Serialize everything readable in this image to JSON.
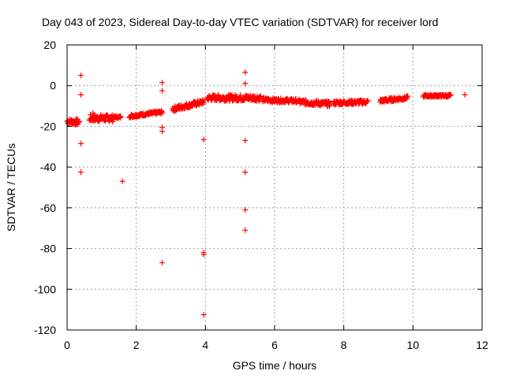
{
  "chart_data": {
    "type": "scatter",
    "title": "Day 043 of 2023, Sidereal Day-to-day VTEC variation (SDTVAR) for receiver lord",
    "xlabel": "GPS time / hours",
    "ylabel": "SDTVAR / TECUs",
    "xlim": [
      0,
      12
    ],
    "ylim": [
      -120,
      20
    ],
    "xticks": [
      0,
      2,
      4,
      6,
      8,
      10,
      12
    ],
    "yticks": [
      -120,
      -100,
      -80,
      -60,
      -40,
      -20,
      0,
      20
    ],
    "xtick_labels": [
      "0",
      "2",
      "4",
      "6",
      "8",
      "10",
      "12"
    ],
    "ytick_labels": [
      "-120",
      "-100",
      "-80",
      "-60",
      "-40",
      "-20",
      "0",
      "20"
    ],
    "grid": true,
    "marker": "plus",
    "color": "#ff0000",
    "series": [
      {
        "name": "SDTVAR",
        "segments": [
          {
            "x_start": 0.0,
            "x_end": 0.35,
            "y_start": -17.5,
            "y_end": -18.0,
            "spread": 3.0
          },
          {
            "x_start": 0.65,
            "x_end": 1.35,
            "y_start": -16.0,
            "y_end": -16.0,
            "spread": 3.5
          },
          {
            "x_start": 1.35,
            "x_end": 1.55,
            "y_start": -15.5,
            "y_end": -15.5,
            "spread": 1.2
          },
          {
            "x_start": 1.8,
            "x_end": 2.75,
            "y_start": -15.0,
            "y_end": -13.0,
            "spread": 1.5
          },
          {
            "x_start": 3.05,
            "x_end": 3.95,
            "y_start": -11.5,
            "y_end": -8.0,
            "spread": 2.5
          },
          {
            "x_start": 4.05,
            "x_end": 5.6,
            "y_start": -6.0,
            "y_end": -6.0,
            "spread": 3.0
          },
          {
            "x_start": 5.65,
            "x_end": 6.65,
            "y_start": -7.0,
            "y_end": -7.5,
            "spread": 2.0
          },
          {
            "x_start": 6.7,
            "x_end": 7.6,
            "y_start": -8.0,
            "y_end": -9.0,
            "spread": 2.5
          },
          {
            "x_start": 7.7,
            "x_end": 8.7,
            "y_start": -8.5,
            "y_end": -8.0,
            "spread": 2.0
          },
          {
            "x_start": 9.05,
            "x_end": 9.85,
            "y_start": -7.5,
            "y_end": -6.0,
            "spread": 1.8
          },
          {
            "x_start": 10.3,
            "x_end": 11.1,
            "y_start": -5.0,
            "y_end": -5.0,
            "spread": 1.2
          }
        ],
        "points": [
          {
            "x": 0.4,
            "y": 5.0
          },
          {
            "x": 0.4,
            "y": -4.5
          },
          {
            "x": 0.4,
            "y": -28.5
          },
          {
            "x": 0.4,
            "y": -42.5
          },
          {
            "x": 0.75,
            "y": -13.5
          },
          {
            "x": 1.6,
            "y": -47.0
          },
          {
            "x": 2.75,
            "y": 1.5
          },
          {
            "x": 2.75,
            "y": -2.5
          },
          {
            "x": 2.75,
            "y": -20.5
          },
          {
            "x": 2.75,
            "y": -22.5
          },
          {
            "x": 2.75,
            "y": -87.0
          },
          {
            "x": 3.95,
            "y": -26.5
          },
          {
            "x": 3.95,
            "y": -82.0
          },
          {
            "x": 3.95,
            "y": -83.0
          },
          {
            "x": 3.95,
            "y": -112.5
          },
          {
            "x": 5.15,
            "y": 6.5
          },
          {
            "x": 5.15,
            "y": 1.0
          },
          {
            "x": 5.15,
            "y": -27.0
          },
          {
            "x": 5.15,
            "y": -42.5
          },
          {
            "x": 5.15,
            "y": -61.0
          },
          {
            "x": 5.15,
            "y": -71.0
          },
          {
            "x": 11.5,
            "y": -4.5
          }
        ]
      }
    ]
  }
}
